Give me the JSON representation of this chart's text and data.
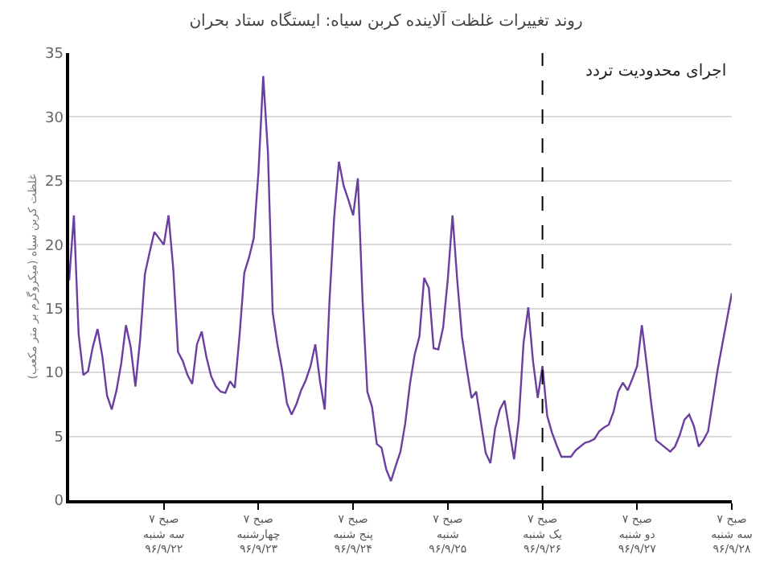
{
  "chart_data": {
    "type": "line",
    "title": "روند تغییرات غلظت آلاینده کربن سیاه: ایستگاه ستاد بحران",
    "ylabel": "غلظت کربن سیاه (میکروگرم بر متر مکعب)",
    "categories": [
      null,
      null,
      null,
      null,
      null,
      null,
      null,
      null,
      null,
      null,
      null,
      null,
      null,
      null,
      null,
      null,
      null,
      null,
      null,
      null,
      "۷ صبح\nسه شنبه\n۹۶/۹/۲۲",
      null,
      null,
      null,
      null,
      null,
      null,
      null,
      null,
      null,
      null,
      null,
      null,
      null,
      null,
      null,
      null,
      null,
      null,
      null,
      "۷ صبح\nچهارشنبه\n۹۶/۹/۲۳",
      null,
      null,
      null,
      null,
      null,
      null,
      null,
      null,
      null,
      null,
      null,
      null,
      null,
      null,
      null,
      null,
      null,
      null,
      null,
      "۷ صبح\nپنج شنبه\n۹۶/۹/۲۴",
      null,
      null,
      null,
      null,
      null,
      null,
      null,
      null,
      null,
      null,
      null,
      null,
      null,
      null,
      null,
      null,
      null,
      null,
      null,
      "۷ صبح\nشنبه\n۹۶/۹/۲۵",
      null,
      null,
      null,
      null,
      null,
      null,
      null,
      null,
      null,
      null,
      null,
      null,
      null,
      null,
      null,
      null,
      null,
      null,
      null,
      "۷ صبح\nیک شنبه\n۹۶/۹/۲۶",
      null,
      null,
      null,
      null,
      null,
      null,
      null,
      null,
      null,
      null,
      null,
      null,
      null,
      null,
      null,
      null,
      null,
      null,
      null,
      "۷ صبح\nدو شنبه\n۹۶/۹/۲۷",
      null,
      null,
      null,
      null,
      null,
      null,
      null,
      null,
      null,
      null,
      null,
      null,
      null,
      null,
      null,
      null,
      null,
      null,
      null,
      "۷ صبح\nسه شنبه\n۹۶/۹/۲۸"
    ],
    "series": [
      {
        "color": "#6b3fa0",
        "values": [
          17.2,
          22.3,
          13.0,
          9.8,
          10.1,
          12.0,
          13.4,
          11.3,
          8.2,
          7.1,
          8.6,
          10.7,
          13.7,
          12.0,
          8.9,
          12.6,
          17.7,
          19.4,
          21.0,
          20.5,
          20.0,
          22.3,
          18.1,
          11.6,
          10.9,
          9.8,
          9.1,
          12.2,
          13.2,
          11.2,
          9.7,
          8.9,
          8.5,
          8.4,
          9.3,
          8.8,
          12.9,
          17.8,
          19.0,
          20.5,
          25.7,
          33.2,
          27.2,
          14.7,
          12.2,
          10.2,
          7.6,
          6.7,
          7.5,
          8.6,
          9.4,
          10.5,
          12.2,
          9.3,
          7.1,
          15.6,
          22.2,
          26.5,
          24.6,
          23.5,
          22.3,
          25.2,
          15.6,
          8.5,
          7.3,
          4.4,
          4.1,
          2.4,
          1.5,
          2.7,
          3.8,
          6.0,
          9.1,
          11.4,
          12.8,
          17.4,
          16.6,
          11.9,
          11.8,
          13.5,
          17.3,
          22.3,
          17.2,
          12.8,
          10.3,
          8.0,
          8.5,
          6.1,
          3.7,
          2.9,
          5.6,
          7.1,
          7.8,
          5.5,
          3.2,
          6.3,
          12.3,
          15.1,
          10.9,
          8.0,
          10.5,
          6.6,
          5.3,
          4.3,
          3.4,
          3.4,
          3.4,
          3.9,
          4.2,
          4.5,
          4.6,
          4.8,
          5.4,
          5.7,
          5.9,
          6.9,
          8.5,
          9.2,
          8.6,
          9.5,
          10.5,
          13.7,
          10.7,
          7.5,
          4.7,
          4.4,
          4.1,
          3.8,
          4.2,
          5.1,
          6.3,
          6.7,
          5.8,
          4.2,
          4.7,
          5.4,
          7.8,
          10.2,
          12.2,
          14.2,
          16.2
        ]
      }
    ],
    "ylim": [
      0,
      35
    ],
    "yticks": [
      0,
      5,
      10,
      15,
      20,
      25,
      30,
      35
    ],
    "grid": "y",
    "marker": "none",
    "line_style": "solid",
    "ref_lines": [
      {
        "axis": "x",
        "value": "۷ صبح\nیک شنبه\n۹۶/۹/۲۶",
        "label": "اجرای محدودیت تردد",
        "color": "#000000",
        "line_style": "dashed"
      }
    ]
  }
}
